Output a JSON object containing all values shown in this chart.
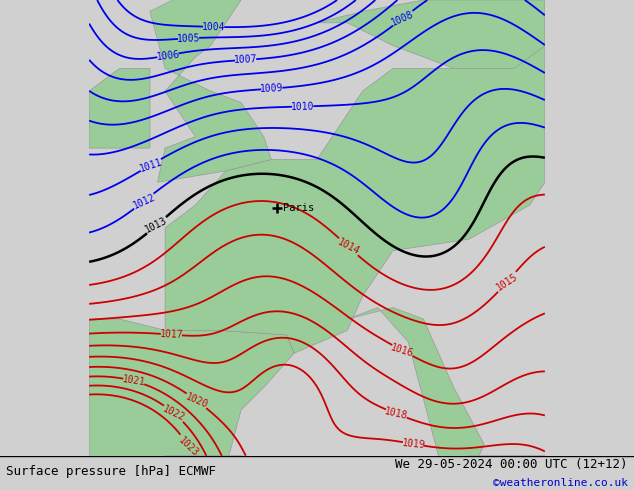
{
  "title_left": "Surface pressure [hPa] ECMWF",
  "title_right": "We 29-05-2024 00:00 UTC (12+12)",
  "credit": "©weatheronline.co.uk",
  "credit_color": "#0000cc",
  "bg_color": "#d0d0d0",
  "land_color": "#99cc99",
  "sea_color": "#d0d0d0",
  "isobar_red_min": 1014,
  "isobar_red_max": 1023,
  "isobar_blue_min": 1004,
  "isobar_blue_max": 1012,
  "isobar_black": 1013,
  "paris_lon": 2.35,
  "paris_lat": 48.85,
  "paris_label": "Paris",
  "lon_min": -10,
  "lon_max": 20,
  "lat_min": 38,
  "lat_max": 58
}
